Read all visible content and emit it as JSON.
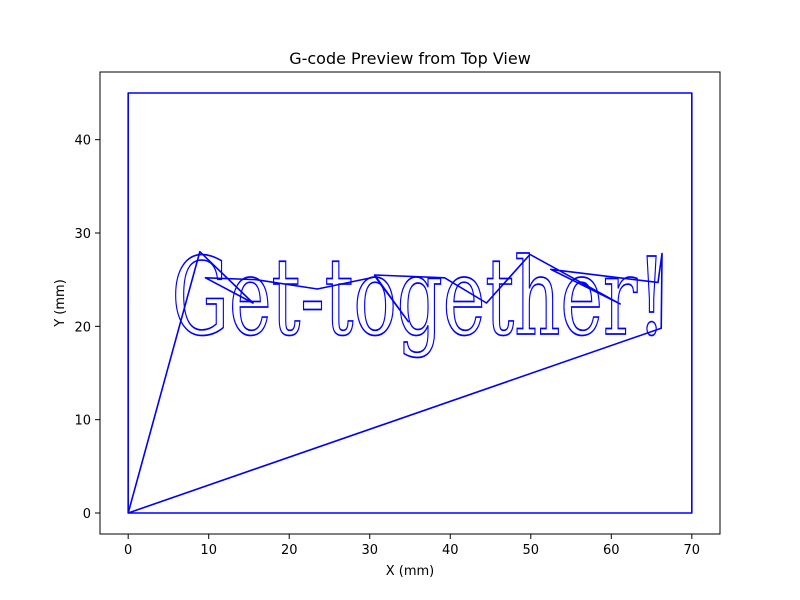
{
  "chart_data": {
    "type": "line",
    "title": "G-code Preview from Top View",
    "xlabel": "X (mm)",
    "ylabel": "Y (mm)",
    "xlim": [
      -3.5,
      73.5
    ],
    "ylim": [
      -2.25,
      47.25
    ],
    "x_ticks": [
      0,
      10,
      20,
      30,
      40,
      50,
      60,
      70
    ],
    "y_ticks": [
      0,
      10,
      20,
      30,
      40
    ],
    "grid": false,
    "line_color": "#0000ff",
    "series": [
      {
        "values": [
          [
            0,
            0
          ],
          [
            0,
            45
          ],
          [
            70,
            45
          ],
          [
            70,
            0
          ],
          [
            0,
            0
          ],
          [
            8.9,
            28
          ],
          [
            15.5,
            22.5
          ],
          [
            9.6,
            25.2
          ],
          [
            15.9,
            25
          ],
          [
            23.5,
            24
          ],
          [
            30.7,
            25.3
          ],
          [
            34.8,
            20.5
          ],
          [
            30.6,
            25.5
          ],
          [
            39.3,
            25.2
          ],
          [
            44.5,
            22.5
          ],
          [
            49.9,
            27.7
          ],
          [
            61.1,
            22.4
          ],
          [
            52.5,
            26.1
          ],
          [
            65.8,
            24.7
          ],
          [
            66.3,
            27.8
          ],
          [
            66.2,
            19.8
          ],
          [
            0,
            0
          ]
        ]
      }
    ],
    "annotations": [
      {
        "text": "Get-together!",
        "x": 5.4,
        "y": 19.2
      }
    ]
  }
}
